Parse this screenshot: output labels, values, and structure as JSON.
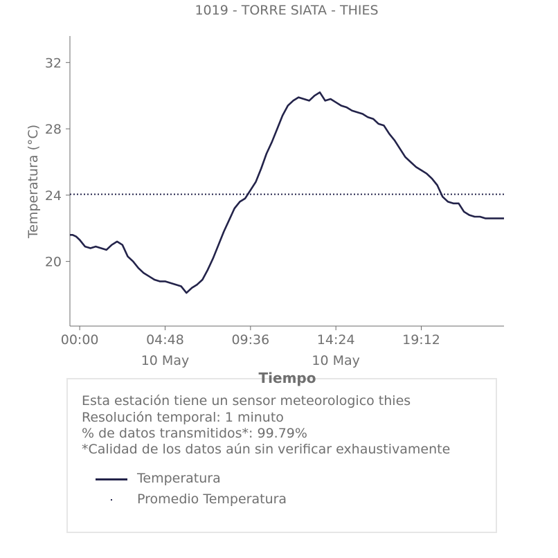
{
  "chart_data": {
    "type": "line",
    "title": "1019 - TORRE SIATA - THIES",
    "xlabel": "Tiempo",
    "ylabel": "Temperatura (°C)",
    "ylim": [
      16.1,
      33.6
    ],
    "yticks": [
      20,
      24,
      28,
      32
    ],
    "x_range_hours": [
      -0.55,
      23.85
    ],
    "xticks": [
      {
        "hour": 0.0,
        "label": "00:00",
        "sublabel": ""
      },
      {
        "hour": 4.8,
        "label": "04:48",
        "sublabel": "10 May"
      },
      {
        "hour": 9.6,
        "label": "09:36",
        "sublabel": ""
      },
      {
        "hour": 14.4,
        "label": "14:24",
        "sublabel": "10 May"
      },
      {
        "hour": 19.2,
        "label": "19:12",
        "sublabel": ""
      }
    ],
    "grid": false,
    "series": [
      {
        "name": "Temperatura",
        "color": "#23234a",
        "style": "solid",
        "x_hours": [
          -0.55,
          -0.4,
          -0.2,
          0.0,
          0.3,
          0.6,
          0.9,
          1.2,
          1.5,
          1.8,
          2.1,
          2.4,
          2.7,
          3.0,
          3.3,
          3.6,
          3.9,
          4.2,
          4.5,
          4.8,
          5.1,
          5.4,
          5.7,
          6.0,
          6.3,
          6.6,
          6.9,
          7.2,
          7.5,
          7.8,
          8.1,
          8.4,
          8.7,
          9.0,
          9.3,
          9.6,
          9.9,
          10.2,
          10.5,
          10.8,
          11.1,
          11.4,
          11.7,
          12.0,
          12.3,
          12.6,
          12.9,
          13.2,
          13.5,
          13.8,
          14.1,
          14.4,
          14.7,
          15.0,
          15.3,
          15.6,
          15.9,
          16.2,
          16.5,
          16.8,
          17.1,
          17.4,
          17.7,
          18.0,
          18.3,
          18.6,
          18.9,
          19.2,
          19.5,
          19.8,
          20.1,
          20.4,
          20.7,
          21.0,
          21.3,
          21.6,
          21.9,
          22.2,
          22.5,
          22.8,
          23.1,
          23.4,
          23.85
        ],
        "values": [
          21.6,
          21.6,
          21.5,
          21.3,
          20.9,
          20.8,
          20.9,
          20.8,
          20.7,
          21.0,
          21.2,
          21.0,
          20.3,
          20.0,
          19.6,
          19.3,
          19.1,
          18.9,
          18.8,
          18.8,
          18.7,
          18.6,
          18.5,
          18.1,
          18.4,
          18.6,
          18.9,
          19.5,
          20.2,
          21.0,
          21.8,
          22.5,
          23.2,
          23.6,
          23.8,
          24.3,
          24.8,
          25.6,
          26.5,
          27.2,
          28.0,
          28.8,
          29.4,
          29.7,
          29.9,
          29.8,
          29.7,
          30.0,
          30.2,
          29.7,
          29.8,
          29.6,
          29.4,
          29.3,
          29.1,
          29.0,
          28.9,
          28.7,
          28.6,
          28.3,
          28.2,
          27.7,
          27.3,
          26.8,
          26.3,
          26.0,
          25.7,
          25.5,
          25.3,
          25.0,
          24.6,
          23.9,
          23.6,
          23.5,
          23.5,
          23.0,
          22.8,
          22.7,
          22.7,
          22.6,
          22.6,
          22.6,
          22.6
        ]
      },
      {
        "name": "Promedio Temperatura",
        "color": "#23234a",
        "style": "dotted",
        "constant": 24.05
      }
    ]
  },
  "info": {
    "line1": "Esta estación tiene un sensor meteorologico thies",
    "line2": "Resolución temporal: 1 minuto",
    "line3": "% de datos transmitidos*: 99.79%",
    "line4": "*Calidad de los datos aún sin verificar exhaustivamente"
  },
  "legend": {
    "item1": "Temperatura",
    "item2": "Promedio Temperatura"
  }
}
